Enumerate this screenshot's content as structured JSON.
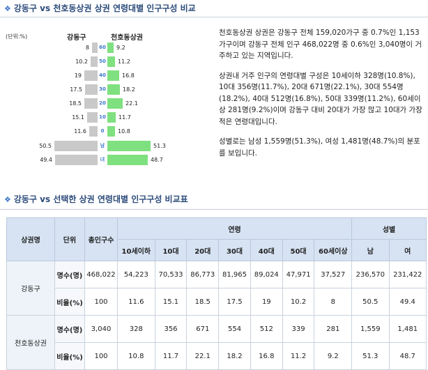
{
  "section1": {
    "title": "강동구 vs 천호동상권 상권 연령대별 인구구성 비교"
  },
  "section2": {
    "title": "강동구 vs 선택한 상권 연령대별 인구구성 비교표"
  },
  "pyramid": {
    "unit_label": "(단위:%)",
    "left_header": "강동구",
    "right_header": "천호동상권",
    "rows": [
      {
        "label": "60",
        "left": 8,
        "right": 9.2
      },
      {
        "label": "50",
        "left": 10.2,
        "right": 11.2
      },
      {
        "label": "40",
        "left": 19,
        "right": 16.8
      },
      {
        "label": "30",
        "left": 17.5,
        "right": 18.2
      },
      {
        "label": "20",
        "left": 18.5,
        "right": 22.1
      },
      {
        "label": "10",
        "left": 15.1,
        "right": 11.7
      },
      {
        "label": "0",
        "left": 11.6,
        "right": 10.8
      },
      {
        "label": "남",
        "left": 50.5,
        "right": 51.3
      },
      {
        "label": "녀",
        "left": 49.4,
        "right": 48.7
      }
    ]
  },
  "description": {
    "p1": "천호동상권 상권은 강동구 전체 159,020가구 중 0.7%인 1,153가구이며 강동구 전체 인구 468,022명 중 0.6%인 3,040명이 거주하고 있는 지역입니다.",
    "p2": "상권내 거주 인구의 연령대별 구성은 10세이하 328명(10.8%), 10대 356명(11.7%), 20대 671명(22.1%), 30대 554명(18.2%), 40대 512명(16.8%), 50대 339명(11.2%), 60세이상 281명(9.2%)이며 강동구 대비 20대가 가장 많고 10대가 가장 적은 연령대입니다.",
    "p3": "성별로는 남성 1,559명(51.3%), 여성 1,481명(48.7%)의 분포를 보입니다."
  },
  "table": {
    "headers": {
      "area": "상권명",
      "unit": "단위",
      "total": "총인구수",
      "age_group": "연령",
      "gender_group": "성별",
      "age_cols": [
        "10세이하",
        "10대",
        "20대",
        "30대",
        "40대",
        "50대",
        "60세이상"
      ],
      "gender_cols": [
        "남",
        "여"
      ]
    },
    "rows": [
      {
        "area": "강동구",
        "metric": "명수(명)",
        "values": [
          "468,022",
          "54,223",
          "70,533",
          "86,773",
          "81,965",
          "89,024",
          "47,971",
          "37,527",
          "236,570",
          "231,422"
        ]
      },
      {
        "area": "강동구",
        "metric": "비율(%)",
        "values": [
          "100",
          "11.6",
          "15.1",
          "18.5",
          "17.5",
          "19",
          "10.2",
          "8",
          "50.5",
          "49.4"
        ]
      },
      {
        "area": "천호동상권",
        "metric": "명수(명)",
        "values": [
          "3,040",
          "328",
          "356",
          "671",
          "554",
          "512",
          "339",
          "281",
          "1,559",
          "1,481"
        ]
      },
      {
        "area": "천호동상권",
        "metric": "비율(%)",
        "values": [
          "100",
          "10.8",
          "11.7",
          "22.1",
          "18.2",
          "16.8",
          "11.2",
          "9.2",
          "51.3",
          "48.7"
        ]
      }
    ]
  }
}
